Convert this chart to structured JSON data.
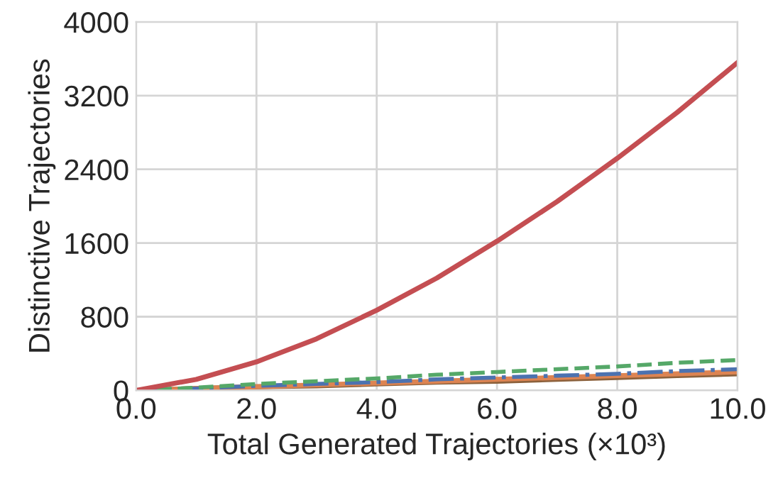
{
  "chart_data": {
    "type": "line",
    "xlabel": "Total Generated Trajectories (×10³)",
    "ylabel": "Distinctive Trajectories",
    "x": [
      0,
      1,
      2,
      3,
      4,
      5,
      6,
      7,
      8,
      9,
      10
    ],
    "series": [
      {
        "color": "#8c613c",
        "line_style": "solid",
        "values": [
          0,
          20,
          40,
          50,
          70,
          90,
          100,
          120,
          140,
          160,
          180
        ]
      },
      {
        "color": "#dd8452",
        "line_style": "solid",
        "values": [
          0,
          20,
          40,
          60,
          80,
          100,
          120,
          140,
          160,
          180,
          200
        ]
      },
      {
        "color": "#4c72b0",
        "line_style": "dashdot",
        "values": [
          0,
          20,
          50,
          70,
          90,
          120,
          140,
          160,
          180,
          210,
          230
        ]
      },
      {
        "color": "#55a868",
        "line_style": "dashed",
        "values": [
          0,
          30,
          70,
          100,
          130,
          170,
          200,
          230,
          260,
          300,
          330
        ]
      },
      {
        "color": "#c44e52",
        "line_style": "solid",
        "values": [
          0,
          120,
          310,
          560,
          870,
          1220,
          1620,
          2050,
          2520,
          3020,
          3560
        ]
      }
    ],
    "xlim": [
      0,
      10
    ],
    "xticks": [
      {
        "value": 0,
        "label": "0.0"
      },
      {
        "value": 2,
        "label": "2.0"
      },
      {
        "value": 4,
        "label": "4.0"
      },
      {
        "value": 6,
        "label": "6.0"
      },
      {
        "value": 8,
        "label": "8.0"
      },
      {
        "value": 10,
        "label": "10.0"
      }
    ],
    "ylim": [
      0,
      4000
    ],
    "yticks": [
      0,
      800,
      1600,
      2400,
      3200,
      4000
    ],
    "grid": true
  }
}
